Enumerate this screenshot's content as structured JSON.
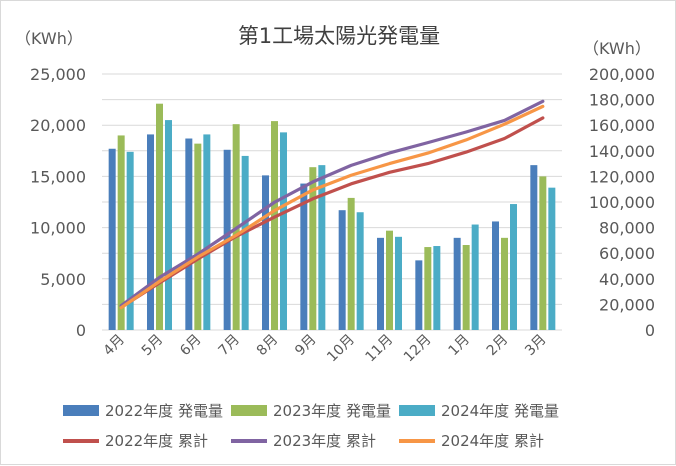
{
  "chart_data": {
    "type": "bar+line",
    "title": "第1工場太陽光発電量",
    "y_left_unit": "（KWh）",
    "y_right_unit": "（KWh）",
    "y_left_range": [
      0,
      25000
    ],
    "y_left_ticks": [
      "0",
      "5,000",
      "10,000",
      "15,000",
      "20,000",
      "25,000"
    ],
    "y_right_range": [
      0,
      200000
    ],
    "y_right_ticks": [
      "0",
      "20,000",
      "40,000",
      "60,000",
      "80,000",
      "100,000",
      "120,000",
      "140,000",
      "160,000",
      "180,000",
      "200,000"
    ],
    "categories": [
      "4月",
      "5月",
      "6月",
      "7月",
      "8月",
      "9月",
      "10月",
      "11月",
      "12月",
      "1月",
      "2月",
      "3月"
    ],
    "bar_series": [
      {
        "name": "2022年度 発電量",
        "color": "#4a7ebb",
        "values": [
          17700,
          19100,
          18700,
          17600,
          15100,
          14300,
          11700,
          9000,
          6800,
          9000,
          10600,
          16100
        ]
      },
      {
        "name": "2023年度 発電量",
        "color": "#9bbb59",
        "values": [
          19000,
          22100,
          18200,
          20100,
          20400,
          15900,
          12900,
          9700,
          8100,
          8300,
          9000,
          15000
        ]
      },
      {
        "name": "2024年度 発電量",
        "color": "#4bacc6",
        "values": [
          17400,
          20500,
          19100,
          17000,
          19300,
          16100,
          11500,
          9100,
          8200,
          10300,
          12300,
          13900
        ]
      }
    ],
    "line_series": [
      {
        "name": "2022年度 累計",
        "color": "#c0504d",
        "values": [
          17700,
          36800,
          55500,
          73100,
          88200,
          102500,
          114200,
          123200,
          130000,
          139000,
          149600,
          165700
        ]
      },
      {
        "name": "2023年度 累計",
        "color": "#8064a2",
        "values": [
          19000,
          41100,
          59300,
          79400,
          99800,
          115700,
          128600,
          138300,
          146400,
          154700,
          163700,
          178700
        ]
      },
      {
        "name": "2024年度 累計",
        "color": "#f79646",
        "values": [
          17400,
          37900,
          57000,
          74000,
          93300,
          109400,
          120900,
          130000,
          138200,
          148500,
          160800,
          174700
        ]
      }
    ],
    "grid": true,
    "legend_position": "bottom"
  }
}
